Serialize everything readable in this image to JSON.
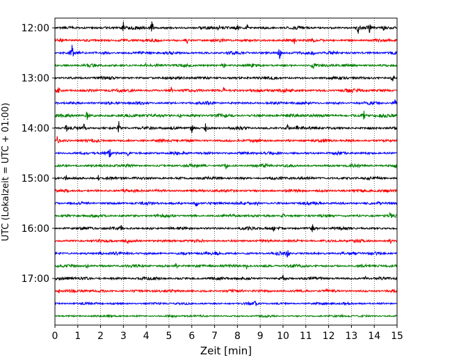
{
  "chart_data": {
    "type": "line",
    "title": "",
    "xlabel": "Zeit  [min]",
    "ylabel": "UTC (Lokalzeit = UTC + 01:00)",
    "xlim": [
      0,
      15
    ],
    "x_ticks": [
      "0",
      "1",
      "2",
      "3",
      "4",
      "5",
      "6",
      "7",
      "8",
      "9",
      "10",
      "11",
      "12",
      "13",
      "14",
      "15"
    ],
    "y_ticks": [
      "12:00",
      "13:00",
      "14:00",
      "15:00",
      "16:00",
      "17:00"
    ],
    "grid": "vertical dotted at each minute",
    "trace_interval_min": 15,
    "first_trace_utc": "12:00",
    "last_trace_utc": "17:45",
    "color_cycle": [
      "#000000",
      "#ff0000",
      "#0000ff",
      "#008000"
    ],
    "series": [
      {
        "start": "12:00",
        "color": "#000000",
        "base_amp": 2.5,
        "events": [
          [
            3.0,
            10
          ],
          [
            4.25,
            12
          ],
          [
            7.2,
            6
          ],
          [
            8.0,
            6
          ],
          [
            8.4,
            8
          ],
          [
            13.3,
            7
          ],
          [
            13.8,
            8
          ],
          [
            14.4,
            6
          ]
        ]
      },
      {
        "start": "12:15",
        "color": "#ff0000",
        "base_amp": 2.5,
        "events": [
          [
            5.8,
            5
          ],
          [
            10.5,
            4
          ]
        ]
      },
      {
        "start": "12:30",
        "color": "#0000ff",
        "base_amp": 2.5,
        "events": [
          [
            0.75,
            10
          ],
          [
            9.85,
            12
          ],
          [
            11.3,
            5
          ]
        ]
      },
      {
        "start": "12:45",
        "color": "#008000",
        "base_amp": 2.5,
        "events": [
          [
            7.4,
            7
          ],
          [
            11.3,
            7
          ],
          [
            4.0,
            3
          ]
        ]
      },
      {
        "start": "13:00",
        "color": "#000000",
        "base_amp": 2.5,
        "events": [
          [
            14.8,
            6
          ]
        ]
      },
      {
        "start": "13:15",
        "color": "#ff0000",
        "base_amp": 2.8,
        "events": [
          [
            0.15,
            6
          ],
          [
            5.1,
            6
          ],
          [
            7.4,
            3
          ]
        ]
      },
      {
        "start": "13:30",
        "color": "#0000ff",
        "base_amp": 2.5,
        "events": [
          [
            14.9,
            5
          ]
        ]
      },
      {
        "start": "13:45",
        "color": "#008000",
        "base_amp": 2.8,
        "events": [
          [
            1.4,
            7
          ],
          [
            13.55,
            12
          ],
          [
            5.5,
            4
          ]
        ]
      },
      {
        "start": "14:00",
        "color": "#000000",
        "base_amp": 2.5,
        "events": [
          [
            0.5,
            6
          ],
          [
            1.3,
            9
          ],
          [
            2.8,
            10
          ],
          [
            6.0,
            8
          ],
          [
            6.6,
            7
          ],
          [
            10.2,
            6
          ],
          [
            10.6,
            5
          ]
        ]
      },
      {
        "start": "14:15",
        "color": "#ff0000",
        "base_amp": 2.5,
        "events": [
          [
            0.1,
            7
          ]
        ]
      },
      {
        "start": "14:30",
        "color": "#0000ff",
        "base_amp": 2.5,
        "events": [
          [
            2.4,
            6
          ],
          [
            3.2,
            5
          ]
        ]
      },
      {
        "start": "14:45",
        "color": "#008000",
        "base_amp": 2.5,
        "events": [
          [
            7.5,
            4
          ],
          [
            9.2,
            5
          ],
          [
            14.9,
            5
          ]
        ]
      },
      {
        "start": "15:00",
        "color": "#000000",
        "base_amp": 2.5,
        "events": [
          [
            0.5,
            5
          ],
          [
            1.9,
            4
          ]
        ]
      },
      {
        "start": "15:15",
        "color": "#ff0000",
        "base_amp": 2.5,
        "events": [
          [
            3.0,
            3
          ]
        ]
      },
      {
        "start": "15:30",
        "color": "#0000ff",
        "base_amp": 2.5,
        "events": [
          [
            6.2,
            6
          ],
          [
            8.85,
            6
          ]
        ]
      },
      {
        "start": "15:45",
        "color": "#008000",
        "base_amp": 2.5,
        "events": [
          [
            10.0,
            5
          ],
          [
            14.7,
            4
          ]
        ]
      },
      {
        "start": "16:00",
        "color": "#000000",
        "base_amp": 2.6,
        "events": [
          [
            2.9,
            7
          ],
          [
            9.6,
            7
          ],
          [
            11.3,
            6
          ]
        ]
      },
      {
        "start": "16:15",
        "color": "#ff0000",
        "base_amp": 2.5,
        "events": [
          [
            3.2,
            4
          ],
          [
            14.7,
            4
          ]
        ]
      },
      {
        "start": "16:30",
        "color": "#0000ff",
        "base_amp": 2.5,
        "events": [
          [
            10.2,
            5
          ],
          [
            2.0,
            3
          ]
        ]
      },
      {
        "start": "16:45",
        "color": "#008000",
        "base_amp": 2.5,
        "events": [
          [
            1.4,
            5
          ],
          [
            5.3,
            5
          ],
          [
            8.4,
            4
          ]
        ]
      },
      {
        "start": "17:00",
        "color": "#000000",
        "base_amp": 2.5,
        "events": [
          [
            10.0,
            4
          ],
          [
            13.6,
            4
          ],
          [
            0.6,
            3
          ]
        ]
      },
      {
        "start": "17:15",
        "color": "#ff0000",
        "base_amp": 2.5,
        "events": [
          [
            0.2,
            4
          ]
        ]
      },
      {
        "start": "17:30",
        "color": "#0000ff",
        "base_amp": 2.0,
        "events": [
          [
            8.8,
            4
          ]
        ]
      },
      {
        "start": "17:45",
        "color": "#008000",
        "base_amp": 1.8,
        "events": []
      }
    ]
  }
}
